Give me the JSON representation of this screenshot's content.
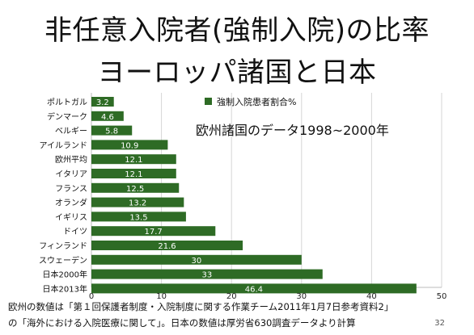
{
  "slide": {
    "title_line1": "非任意入院者(強制入院)の比率",
    "title_line2": "ヨーロッパ諸国と日本",
    "footnote_line1": "欧州の数値は「第１回保護者制度・入院制度に関する作業チーム2011年1月7日参考資料2」",
    "footnote_line2": "の「海外における入院医療に関して」。日本の数値は厚労省630調査データより計算",
    "page_number": "32"
  },
  "colors": {
    "bar": "#2e6b25",
    "bar_label": "#ffffff",
    "grid": "#d6d6d6"
  },
  "chart_data": {
    "type": "bar",
    "orientation": "horizontal",
    "categories": [
      "ポルトガル",
      "デンマーク",
      "ベルギー",
      "アイルランド",
      "欧州平均",
      "イタリア",
      "フランス",
      "オランダ",
      "イギリス",
      "ドイツ",
      "フィンランド",
      "スウェーデン",
      "日本2000年",
      "日本2013年"
    ],
    "series": [
      {
        "name": "強制入院患者割合%",
        "values": [
          3.2,
          4.6,
          5.8,
          10.9,
          12.1,
          12.1,
          12.5,
          13.2,
          13.5,
          17.7,
          21.6,
          30,
          33,
          46.4
        ]
      }
    ],
    "value_labels": [
      "3.2",
      "4.6",
      "5.8",
      "10.9",
      "12.1",
      "12.1",
      "12.5",
      "13.2",
      "13.5",
      "17.7",
      "21.6",
      "30",
      "33",
      "46.4"
    ],
    "xlim": [
      0,
      50
    ],
    "xticks": [
      0,
      10,
      20,
      30,
      40,
      50
    ],
    "xtick_labels": [
      "0",
      "10",
      "20",
      "30",
      "40",
      "50"
    ],
    "grid": true,
    "legend_position": "top",
    "annotation": "欧州諸国のデータ1998~2000年"
  }
}
